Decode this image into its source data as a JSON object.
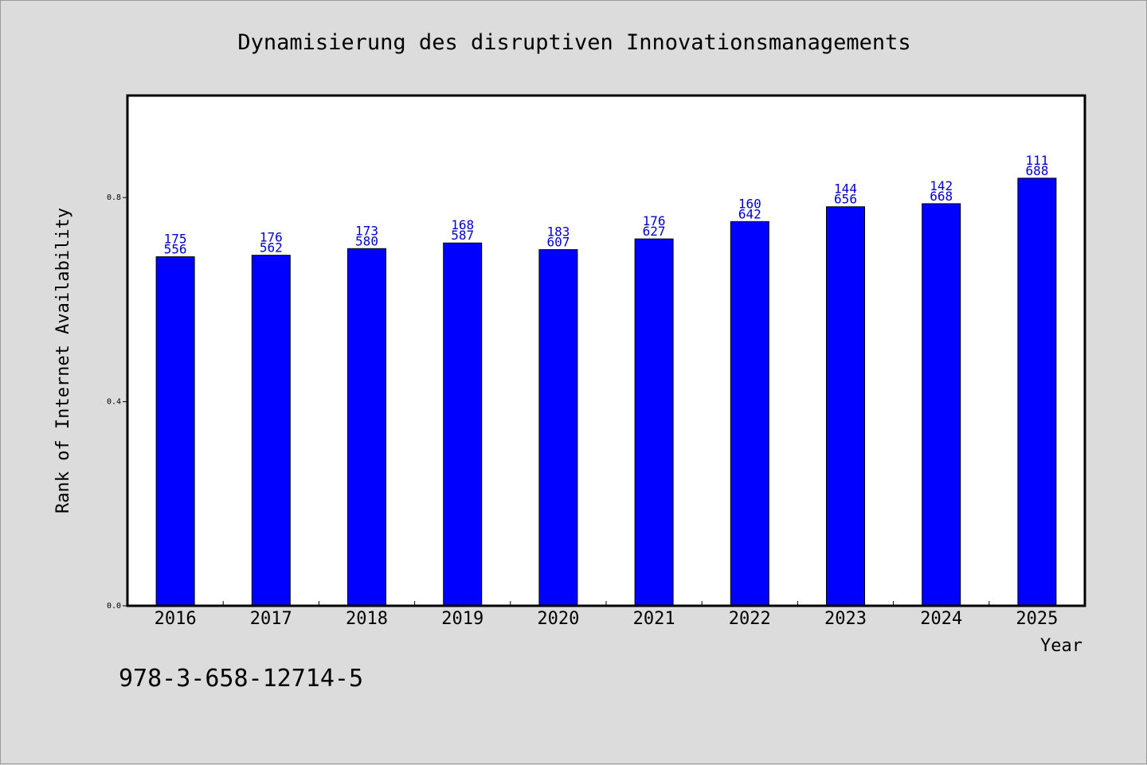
{
  "page": {
    "background": "#dcdcdc",
    "isbn": "978-3-658-12714-5"
  },
  "chart_data": {
    "type": "bar",
    "title": "Dynamisierung des disruptiven Innovationsmanagements",
    "xlabel": "Year",
    "ylabel": "Rank of Internet Availability",
    "categories": [
      "2016",
      "2017",
      "2018",
      "2019",
      "2020",
      "2021",
      "2022",
      "2023",
      "2024",
      "2025"
    ],
    "series": [
      {
        "values": [
          0.684,
          0.687,
          0.7,
          0.711,
          0.698,
          0.719,
          0.753,
          0.782,
          0.788,
          0.838
        ],
        "labels": [
          [
            "175",
            "556"
          ],
          [
            "176",
            "562"
          ],
          [
            "173",
            "580"
          ],
          [
            "168",
            "587"
          ],
          [
            "183",
            "607"
          ],
          [
            "176",
            "627"
          ],
          [
            "160",
            "642"
          ],
          [
            "144",
            "656"
          ],
          [
            "142",
            "668"
          ],
          [
            "111",
            "688"
          ]
        ]
      }
    ],
    "ylim": [
      0,
      1.0
    ],
    "yticks": [
      "0.0",
      "0.4",
      "0.8"
    ],
    "bar_color": "#0000ff",
    "label_color": "#0000cc",
    "grid": false,
    "legend": "none"
  }
}
